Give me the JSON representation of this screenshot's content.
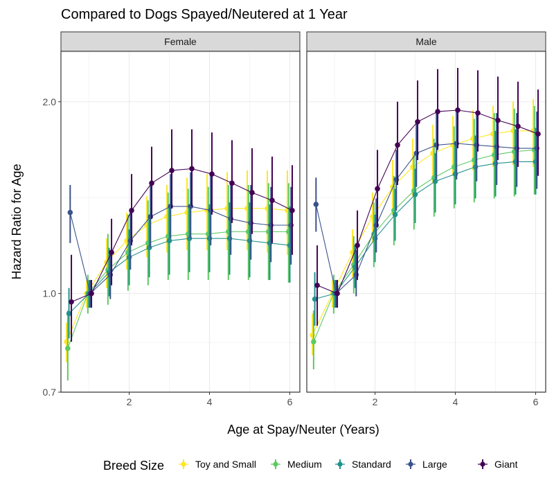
{
  "chart_data": {
    "type": "line",
    "title": "Compared to Dogs Spayed/Neutered at 1 Year",
    "xlabel": "Age at Spay/Neuter (Years)",
    "ylabel": "Hazard Ratio for Age",
    "y_scale": "log",
    "xlim": [
      0.3,
      6.25
    ],
    "ylim": [
      0.7,
      2.4
    ],
    "x_ticks": [
      2,
      4,
      6
    ],
    "x_tick_labels": [
      "2",
      "4",
      "6"
    ],
    "y_ticks": [
      0.7,
      1.0,
      2.0
    ],
    "y_tick_labels": [
      "0.7",
      "1.0",
      "2.0"
    ],
    "grid": true,
    "legend": {
      "title": "Breed Size",
      "position": "bottom"
    },
    "series": [
      {
        "name": "Toy and Small",
        "color": "#FDE725"
      },
      {
        "name": "Medium",
        "color": "#5EC962"
      },
      {
        "name": "Standard",
        "color": "#21918C"
      },
      {
        "name": "Large",
        "color": "#3B528B"
      },
      {
        "name": "Giant",
        "color": "#440154"
      }
    ],
    "panels": [
      {
        "label": "Female",
        "series": [
          {
            "name": "Toy and Small",
            "x": [
              0.44,
              0.94,
              1.44,
              1.94,
              2.44,
              2.94,
              3.44,
              3.94,
              4.44,
              4.94,
              5.44,
              5.94
            ],
            "y": [
              0.84,
              1.0,
              1.12,
              1.21,
              1.28,
              1.32,
              1.34,
              1.35,
              1.36,
              1.36,
              1.36,
              1.35
            ],
            "lo": [
              0.78,
              0.95,
              1.02,
              1.09,
              1.14,
              1.16,
              1.17,
              1.17,
              1.17,
              1.17,
              1.16,
              1.15
            ],
            "hi": [
              0.9,
              1.05,
              1.22,
              1.34,
              1.42,
              1.48,
              1.52,
              1.54,
              1.55,
              1.56,
              1.56,
              1.56
            ]
          },
          {
            "name": "Medium",
            "x": [
              0.47,
              0.97,
              1.47,
              1.97,
              2.47,
              2.97,
              3.47,
              3.97,
              4.47,
              4.97,
              5.47,
              5.97
            ],
            "y": [
              0.82,
              1.0,
              1.09,
              1.16,
              1.2,
              1.23,
              1.24,
              1.24,
              1.25,
              1.25,
              1.25,
              1.25
            ],
            "lo": [
              0.73,
              0.93,
              0.96,
              1.01,
              1.03,
              1.05,
              1.05,
              1.05,
              1.05,
              1.05,
              1.05,
              1.04
            ],
            "hi": [
              0.94,
              1.07,
              1.24,
              1.33,
              1.4,
              1.44,
              1.46,
              1.47,
              1.48,
              1.48,
              1.49,
              1.49
            ]
          },
          {
            "name": "Standard",
            "x": [
              0.5,
              1.0,
              1.5,
              2.0,
              2.5,
              3.0,
              3.5,
              4.0,
              4.5,
              5.0,
              5.5,
              6.0
            ],
            "y": [
              0.93,
              1.0,
              1.08,
              1.14,
              1.18,
              1.21,
              1.22,
              1.22,
              1.22,
              1.21,
              1.2,
              1.19
            ],
            "lo": [
              0.85,
              0.95,
              0.99,
              1.03,
              1.06,
              1.07,
              1.08,
              1.08,
              1.07,
              1.06,
              1.05,
              1.04
            ],
            "hi": [
              1.02,
              1.05,
              1.18,
              1.26,
              1.32,
              1.36,
              1.38,
              1.38,
              1.39,
              1.39,
              1.38,
              1.37
            ]
          },
          {
            "name": "Large",
            "x": [
              0.53,
              1.03,
              1.53,
              2.03,
              2.53,
              3.03,
              3.53,
              4.03,
              4.53,
              5.03,
              5.53,
              6.03
            ],
            "y": [
              1.34,
              1.0,
              1.07,
              1.21,
              1.32,
              1.37,
              1.37,
              1.35,
              1.31,
              1.29,
              1.28,
              1.28
            ],
            "lo": [
              1.2,
              0.95,
              0.98,
              1.09,
              1.18,
              1.22,
              1.22,
              1.19,
              1.15,
              1.13,
              1.12,
              1.11
            ],
            "hi": [
              1.48,
              1.05,
              1.17,
              1.35,
              1.48,
              1.54,
              1.55,
              1.53,
              1.5,
              1.48,
              1.47,
              1.47
            ]
          },
          {
            "name": "Giant",
            "x": [
              0.56,
              1.06,
              1.56,
              2.06,
              2.56,
              3.06,
              3.56,
              4.06,
              4.56,
              5.06,
              5.56,
              6.06
            ],
            "y": [
              0.97,
              1.0,
              1.16,
              1.35,
              1.49,
              1.56,
              1.57,
              1.54,
              1.49,
              1.44,
              1.4,
              1.35
            ],
            "lo": [
              0.84,
              0.95,
              1.03,
              1.19,
              1.31,
              1.36,
              1.37,
              1.33,
              1.29,
              1.24,
              1.2,
              1.15
            ],
            "hi": [
              1.15,
              1.05,
              1.31,
              1.54,
              1.7,
              1.81,
              1.81,
              1.79,
              1.74,
              1.69,
              1.64,
              1.59
            ]
          }
        ]
      },
      {
        "label": "Male",
        "series": [
          {
            "name": "Toy and Small",
            "x": [
              0.44,
              0.94,
              1.44,
              1.94,
              2.44,
              2.94,
              3.44,
              3.94,
              4.44,
              4.94,
              5.44,
              5.94
            ],
            "y": [
              0.86,
              1.0,
              1.16,
              1.32,
              1.47,
              1.58,
              1.66,
              1.71,
              1.75,
              1.78,
              1.8,
              1.8
            ],
            "lo": [
              0.8,
              0.95,
              1.06,
              1.2,
              1.33,
              1.42,
              1.49,
              1.53,
              1.56,
              1.58,
              1.59,
              1.58
            ],
            "hi": [
              0.93,
              1.05,
              1.26,
              1.44,
              1.62,
              1.75,
              1.84,
              1.9,
              1.94,
              1.97,
              2.0,
              2.02
            ]
          },
          {
            "name": "Medium",
            "x": [
              0.47,
              0.97,
              1.47,
              1.97,
              2.47,
              2.97,
              3.47,
              3.97,
              4.47,
              4.97,
              5.47,
              5.97
            ],
            "y": [
              0.84,
              1.0,
              1.11,
              1.24,
              1.35,
              1.45,
              1.52,
              1.58,
              1.62,
              1.65,
              1.67,
              1.68
            ],
            "lo": [
              0.76,
              0.93,
              1.0,
              1.1,
              1.19,
              1.26,
              1.32,
              1.36,
              1.39,
              1.41,
              1.42,
              1.43
            ],
            "hi": [
              0.94,
              1.07,
              1.23,
              1.39,
              1.53,
              1.65,
              1.75,
              1.83,
              1.88,
              1.92,
              1.95,
              1.97
            ]
          },
          {
            "name": "Standard",
            "x": [
              0.5,
              1.0,
              1.5,
              2.0,
              2.5,
              3.0,
              3.5,
              4.0,
              4.5,
              5.0,
              5.5,
              6.0
            ],
            "y": [
              0.98,
              1.0,
              1.1,
              1.22,
              1.33,
              1.43,
              1.5,
              1.54,
              1.58,
              1.6,
              1.61,
              1.61
            ],
            "lo": [
              0.89,
              0.95,
              1.02,
              1.12,
              1.21,
              1.29,
              1.34,
              1.38,
              1.41,
              1.42,
              1.43,
              1.43
            ],
            "hi": [
              1.08,
              1.05,
              1.19,
              1.33,
              1.46,
              1.57,
              1.66,
              1.72,
              1.77,
              1.8,
              1.81,
              1.82
            ]
          },
          {
            "name": "Large",
            "x": [
              0.53,
              1.03,
              1.53,
              2.03,
              2.53,
              3.03,
              3.53,
              4.03,
              4.53,
              5.03,
              5.53,
              6.03
            ],
            "y": [
              1.38,
              1.0,
              1.07,
              1.28,
              1.51,
              1.66,
              1.71,
              1.72,
              1.71,
              1.7,
              1.69,
              1.69
            ],
            "lo": [
              1.25,
              0.95,
              0.99,
              1.16,
              1.35,
              1.47,
              1.51,
              1.51,
              1.5,
              1.48,
              1.47,
              1.46
            ],
            "hi": [
              1.52,
              1.05,
              1.17,
              1.41,
              1.68,
              1.85,
              1.92,
              1.93,
              1.93,
              1.92,
              1.92,
              1.93
            ]
          },
          {
            "name": "Giant",
            "x": [
              0.56,
              1.06,
              1.56,
              2.06,
              2.56,
              3.06,
              3.56,
              4.06,
              4.56,
              5.06,
              5.56,
              6.06
            ],
            "y": [
              1.03,
              1.0,
              1.19,
              1.46,
              1.71,
              1.86,
              1.93,
              1.94,
              1.92,
              1.87,
              1.83,
              1.78
            ],
            "lo": [
              0.89,
              0.95,
              1.05,
              1.27,
              1.48,
              1.62,
              1.68,
              1.69,
              1.67,
              1.62,
              1.58,
              1.53
            ],
            "hi": [
              1.19,
              1.05,
              1.35,
              1.68,
              2.0,
              2.16,
              2.25,
              2.26,
              2.24,
              2.19,
              2.15,
              2.09
            ]
          }
        ]
      }
    ]
  }
}
